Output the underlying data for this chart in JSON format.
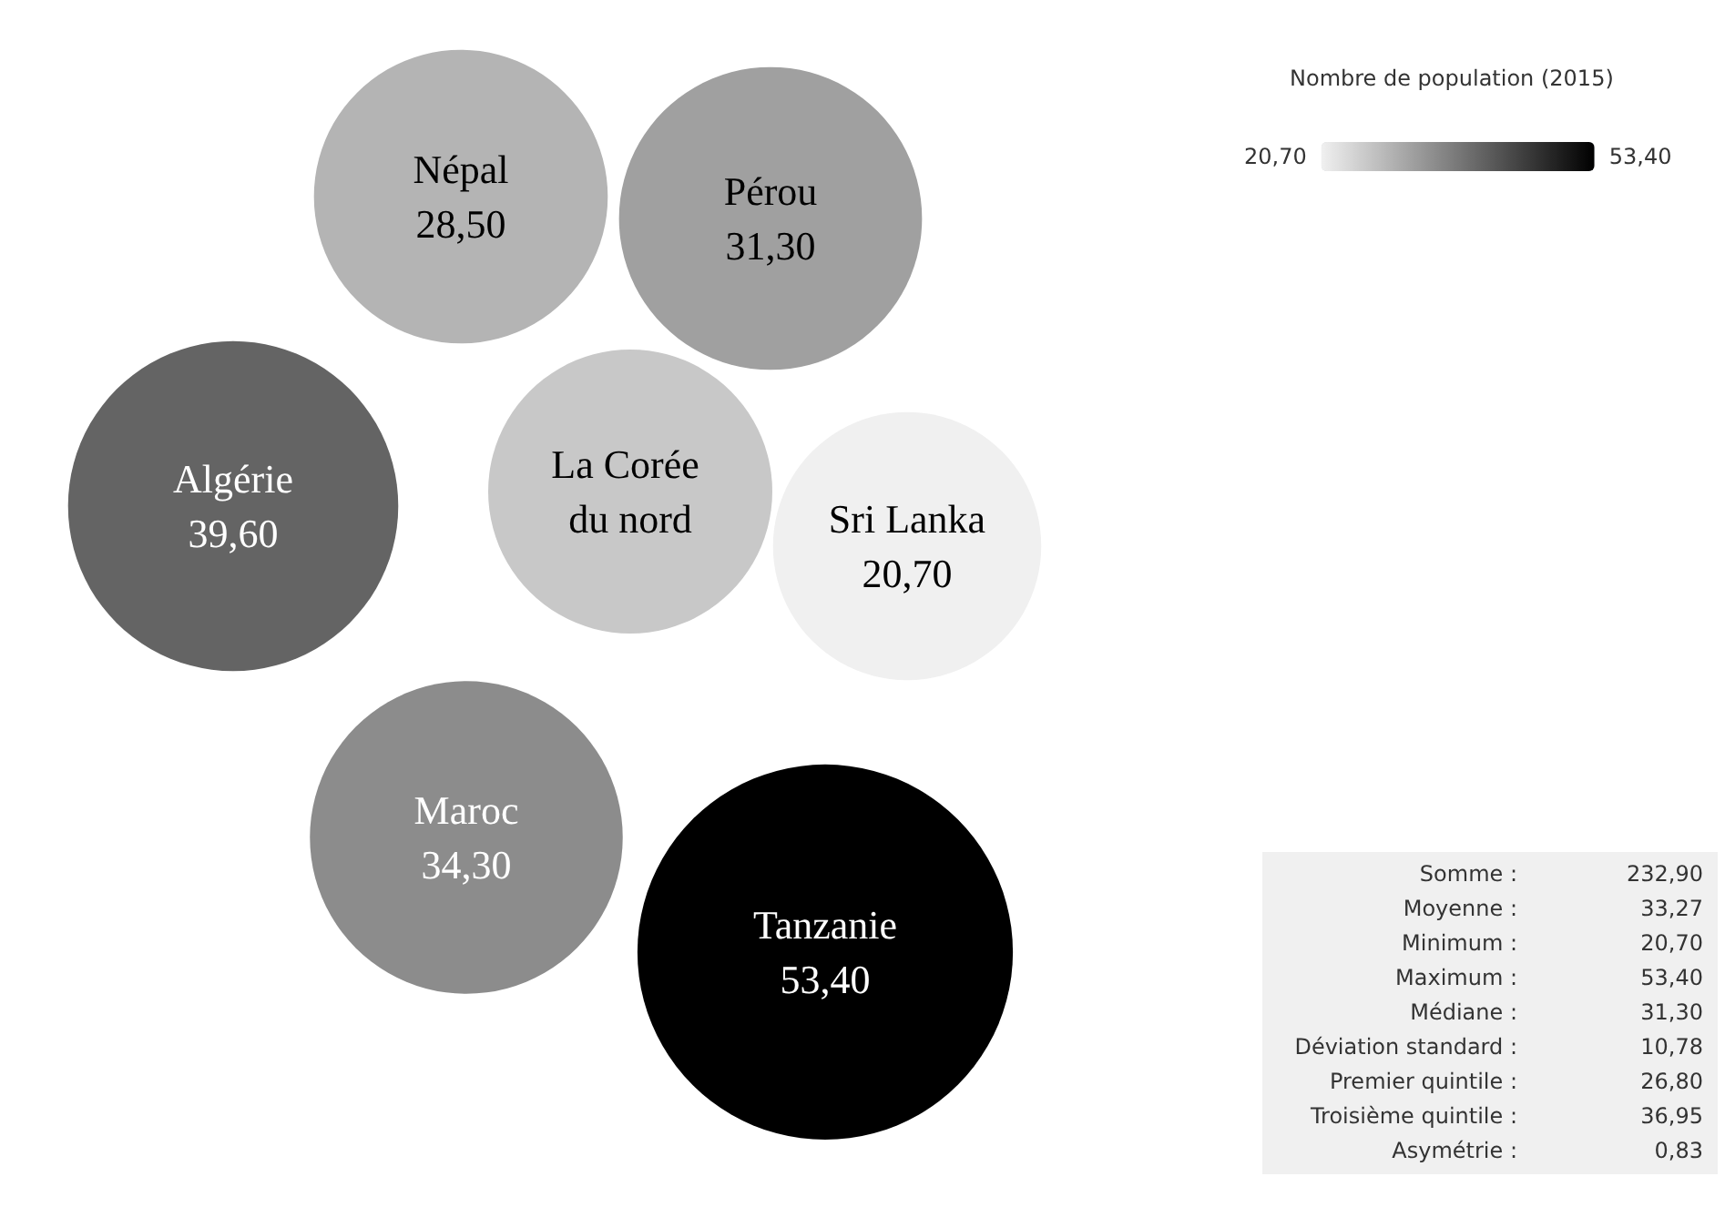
{
  "chart_data": {
    "type": "other",
    "legend_title": "Nombre de population (2015)",
    "categories": [
      "Népal",
      "Pérou",
      "Algérie",
      "La Corée du nord",
      "Sri Lanka",
      "Maroc",
      "Tanzanie"
    ],
    "values": [
      28.5,
      31.3,
      39.6,
      null,
      20.7,
      34.3,
      53.4
    ],
    "value_labels": [
      "28,50",
      "31,30",
      "39,60",
      null,
      "20,70",
      "34,30",
      "53,40"
    ],
    "colors": [
      "#b4b4b4",
      "#a0a0a0",
      "#646464",
      "#c8c8c8",
      "#f0f0f0",
      "#8c8c8c",
      "#000000"
    ],
    "annotations": [
      "Somme : 232,90",
      "Moyenne : 33,27",
      "Minimum : 20,70",
      "Maximum : 53,40",
      "Médiane : 31,30",
      "Déviation standard : 10,78",
      "Premier quintile : 26,80",
      "Troisième quintile : 36,95",
      "Asymétrie : 0,83"
    ]
  }
}
